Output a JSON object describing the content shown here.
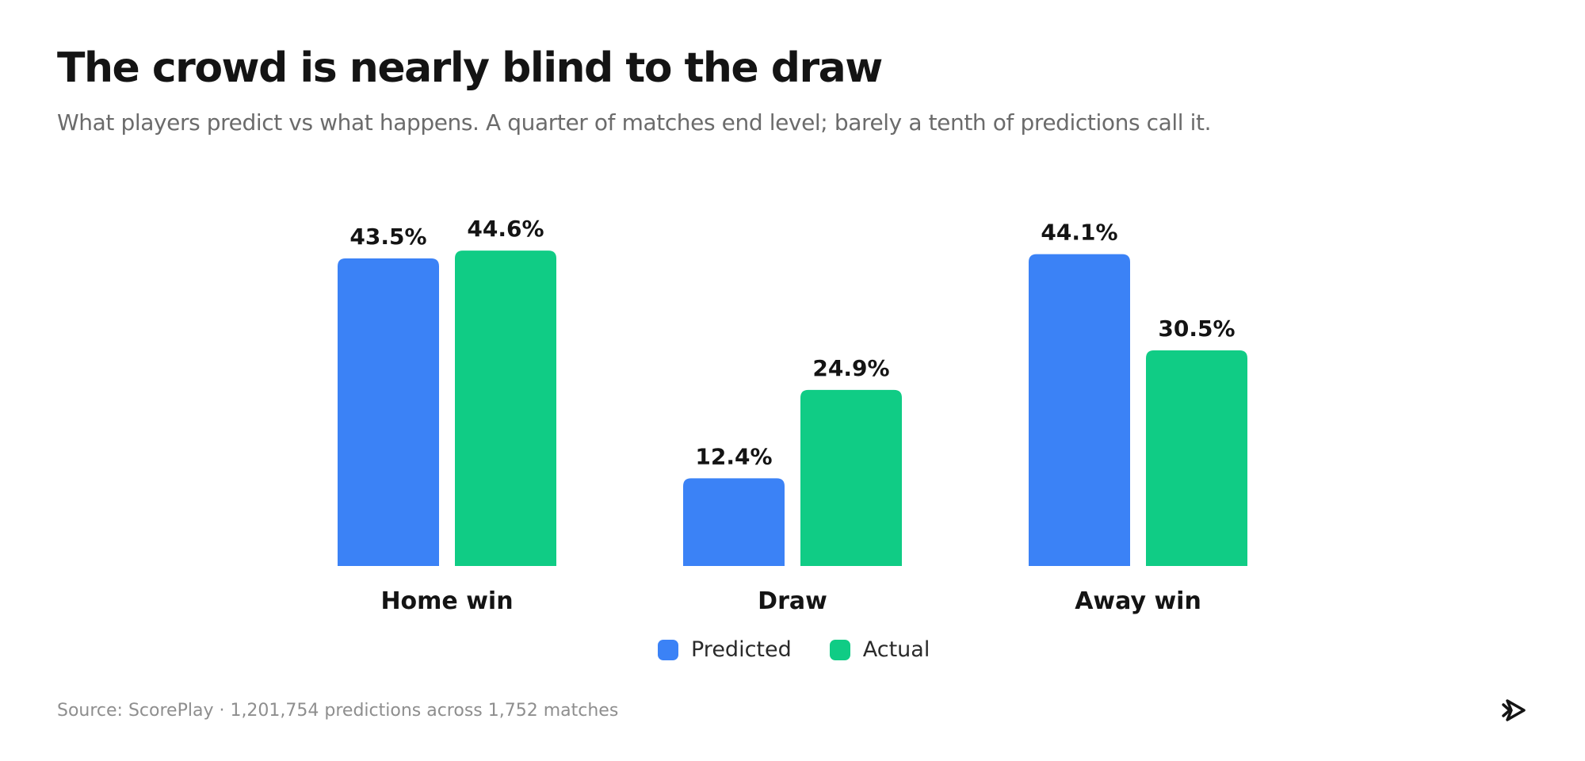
{
  "header": {
    "title": "The crowd is nearly blind to the draw",
    "subtitle": "What players predict vs what happens. A quarter of matches end level; barely a tenth of predictions call it."
  },
  "chart_data": {
    "type": "bar",
    "categories": [
      "Home win",
      "Draw",
      "Away win"
    ],
    "series": [
      {
        "name": "Predicted",
        "color": "#3b82f6",
        "values": [
          43.5,
          12.4,
          44.1
        ],
        "labels": [
          "43.5%",
          "12.4%",
          "44.1%"
        ]
      },
      {
        "name": "Actual",
        "color": "#10cc85",
        "values": [
          44.6,
          24.9,
          30.5
        ],
        "labels": [
          "44.6%",
          "24.9%",
          "30.5%"
        ]
      }
    ],
    "ylim": [
      0,
      45
    ],
    "grid": false,
    "legend": "bottom-center"
  },
  "legend": {
    "predicted": "Predicted",
    "actual": "Actual"
  },
  "footer": {
    "source": "Source: ScorePlay · 1,201,754 predictions across 1,752 matches"
  },
  "brand": {
    "logo_icon": "scoreplay-logo-icon"
  }
}
